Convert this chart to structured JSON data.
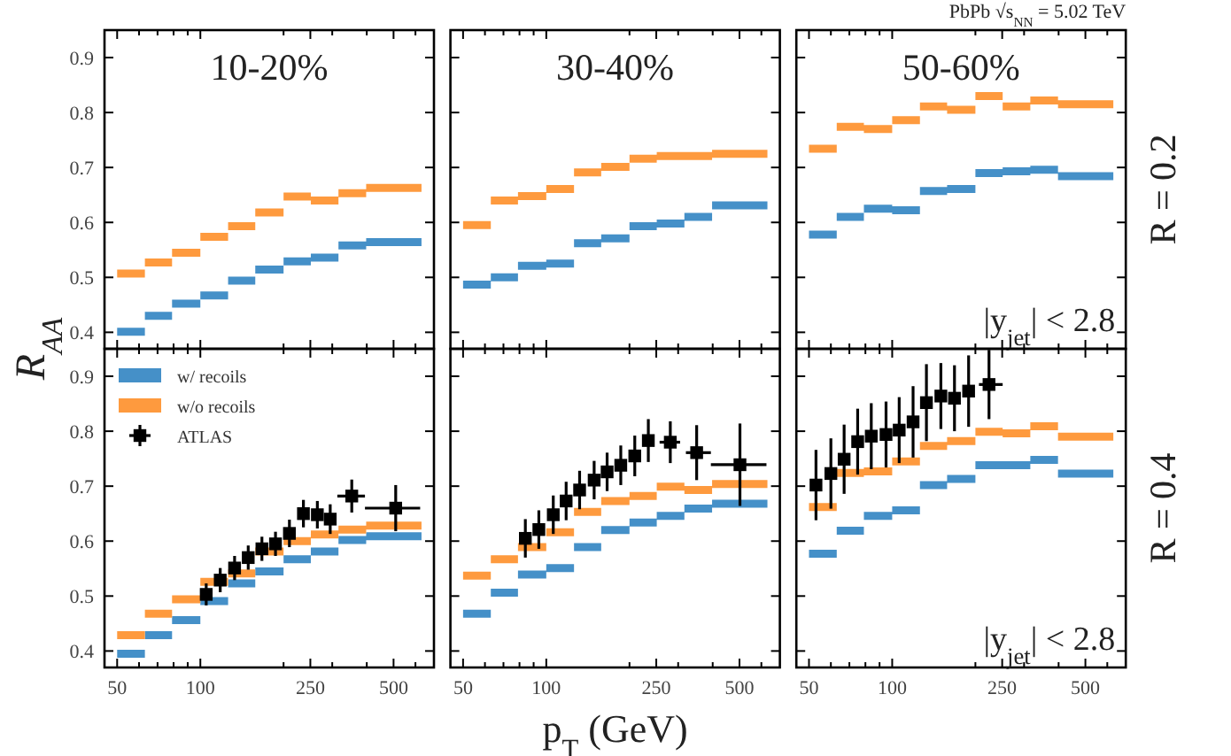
{
  "chart_data": [
    {
      "type": "step",
      "title": "10-20%",
      "log": "x",
      "xlim": [
        45,
        700
      ],
      "ylim": [
        0.37,
        0.95
      ],
      "tick_labels": "y",
      "xticks": [
        50,
        {
          "value": 60,
          "label": null
        },
        {
          "value": 70,
          "label": null
        },
        {
          "value": 80,
          "label": null
        },
        {
          "value": 90,
          "label": null
        },
        100,
        {
          "value": 200,
          "label": null
        },
        250,
        {
          "value": 300,
          "label": null
        },
        {
          "value": 400,
          "label": null
        },
        500,
        {
          "value": 600,
          "label": null
        }
      ],
      "yticks": [
        0.4,
        0.5,
        0.6,
        0.7,
        0.8,
        0.9
      ],
      "series": [
        {
          "color": "#fe9a3e",
          "x": [
            50,
            63,
            79,
            100,
            126,
            158,
            200,
            251,
            316,
            398,
            631
          ],
          "values": [
            0.507,
            0.527,
            0.545,
            0.574,
            0.593,
            0.618,
            0.647,
            0.64,
            0.653,
            0.663,
            0.663
          ]
        },
        {
          "color": "#4590c8",
          "x": [
            50,
            63,
            79,
            100,
            126,
            158,
            200,
            251,
            316,
            398,
            631
          ],
          "values": [
            0.401,
            0.43,
            0.452,
            0.467,
            0.494,
            0.514,
            0.529,
            0.536,
            0.558,
            0.564,
            0.564
          ]
        }
      ]
    },
    {
      "type": "step",
      "title": "30-40%",
      "log": "x",
      "xlim": [
        45,
        700
      ],
      "ylim": [
        0.37,
        0.95
      ],
      "tick_labels": false,
      "xticks": [
        50,
        {
          "value": 60,
          "label": null
        },
        {
          "value": 70,
          "label": null
        },
        {
          "value": 80,
          "label": null
        },
        {
          "value": 90,
          "label": null
        },
        100,
        {
          "value": 200,
          "label": null
        },
        250,
        {
          "value": 300,
          "label": null
        },
        {
          "value": 400,
          "label": null
        },
        500,
        {
          "value": 600,
          "label": null
        }
      ],
      "yticks": [
        0.4,
        0.5,
        0.6,
        0.7,
        0.8,
        0.9
      ],
      "series": [
        {
          "color": "#fe9a3e",
          "x": [
            50,
            63,
            79,
            100,
            126,
            158,
            200,
            251,
            316,
            398,
            631
          ],
          "values": [
            0.595,
            0.64,
            0.648,
            0.661,
            0.691,
            0.701,
            0.716,
            0.721,
            0.721,
            0.725,
            0.725
          ]
        },
        {
          "color": "#4590c8",
          "x": [
            50,
            63,
            79,
            100,
            126,
            158,
            200,
            251,
            316,
            398,
            631
          ],
          "values": [
            0.487,
            0.5,
            0.521,
            0.525,
            0.562,
            0.571,
            0.593,
            0.598,
            0.61,
            0.631,
            0.631
          ]
        }
      ]
    },
    {
      "type": "step",
      "title": "50-60%",
      "subtitle": "PbPb √s$_{NN}$ = 5.02 TeV",
      "annotations": [
        "|y$_{jet}$| < 2.8",
        "R = 0.2"
      ],
      "log": "x",
      "xlim": [
        45,
        700
      ],
      "ylim": [
        0.37,
        0.95
      ],
      "tick_labels": false,
      "xticks": [
        50,
        {
          "value": 60,
          "label": null
        },
        {
          "value": 70,
          "label": null
        },
        {
          "value": 80,
          "label": null
        },
        {
          "value": 90,
          "label": null
        },
        100,
        {
          "value": 200,
          "label": null
        },
        250,
        {
          "value": 300,
          "label": null
        },
        {
          "value": 400,
          "label": null
        },
        500,
        {
          "value": 600,
          "label": null
        }
      ],
      "yticks": [
        0.4,
        0.5,
        0.6,
        0.7,
        0.8,
        0.9
      ],
      "series": [
        {
          "color": "#fe9a3e",
          "x": [
            50,
            63,
            79,
            100,
            126,
            158,
            200,
            251,
            316,
            398,
            631
          ],
          "values": [
            0.734,
            0.774,
            0.77,
            0.786,
            0.811,
            0.805,
            0.83,
            0.811,
            0.822,
            0.815,
            0.815
          ]
        },
        {
          "color": "#4590c8",
          "x": [
            50,
            63,
            79,
            100,
            126,
            158,
            200,
            251,
            316,
            398,
            631
          ],
          "values": [
            0.578,
            0.61,
            0.625,
            0.622,
            0.657,
            0.661,
            0.69,
            0.693,
            0.696,
            0.684,
            0.684
          ]
        }
      ]
    },
    {
      "type": "step",
      "ylabel": "R$_{AA}$",
      "legend": "top left",
      "log": "x",
      "xlim": [
        45,
        700
      ],
      "ylim": [
        0.37,
        0.95
      ],
      "xticks": [
        50,
        {
          "value": 60,
          "label": null
        },
        {
          "value": 70,
          "label": null
        },
        {
          "value": 80,
          "label": null
        },
        {
          "value": 90,
          "label": null
        },
        100,
        {
          "value": 200,
          "label": null
        },
        250,
        {
          "value": 300,
          "label": null
        },
        {
          "value": 400,
          "label": null
        },
        500,
        {
          "value": 600,
          "label": null
        }
      ],
      "yticks": [
        0.4,
        0.5,
        0.6,
        0.7,
        0.8,
        0.9
      ],
      "series": [
        {
          "name": "w/ recoils",
          "color": "#4590c8",
          "x": [
            50,
            63,
            79,
            100,
            126,
            158,
            200,
            251,
            316,
            398,
            631
          ],
          "values": [
            0.395,
            0.429,
            0.456,
            0.491,
            0.523,
            0.545,
            0.567,
            0.581,
            0.602,
            0.609,
            0.609
          ]
        },
        {
          "name": "w/o recoils",
          "color": "#fe9a3e",
          "x": [
            50,
            63,
            79,
            100,
            126,
            158,
            200,
            251,
            316,
            398,
            631
          ],
          "values": [
            0.429,
            0.468,
            0.494,
            0.526,
            0.541,
            0.581,
            0.6,
            0.612,
            0.621,
            0.628,
            0.628
          ]
        },
        {
          "name": "ATLAS",
          "type": "scatter",
          "marker": "square",
          "color": "#000000",
          "x": [
            105,
            118,
            133,
            149,
            167,
            187,
            210,
            236,
            265,
            295,
            353,
            509
          ],
          "values": [
            0.503,
            0.529,
            0.551,
            0.57,
            0.586,
            0.595,
            0.614,
            0.65,
            0.648,
            0.64,
            0.682,
            0.66
          ],
          "errors": [
            0.02,
            0.022,
            0.022,
            0.022,
            0.022,
            0.022,
            0.025,
            0.025,
            0.025,
            0.027,
            0.03,
            0.042
          ],
          "xerrors": [
            null,
            null,
            null,
            null,
            null,
            null,
            null,
            null,
            null,
            null,
            [
              313,
              394
            ],
            [
              394,
              624
            ]
          ]
        }
      ]
    },
    {
      "type": "step",
      "xlabel": "p$_{T}$ (GeV)",
      "log": "x",
      "xlim": [
        45,
        700
      ],
      "ylim": [
        0.37,
        0.95
      ],
      "tick_labels": "x",
      "xticks": [
        50,
        {
          "value": 60,
          "label": null
        },
        {
          "value": 70,
          "label": null
        },
        {
          "value": 80,
          "label": null
        },
        {
          "value": 90,
          "label": null
        },
        100,
        {
          "value": 200,
          "label": null
        },
        250,
        {
          "value": 300,
          "label": null
        },
        {
          "value": 400,
          "label": null
        },
        500,
        {
          "value": 600,
          "label": null
        }
      ],
      "yticks": [
        0.4,
        0.5,
        0.6,
        0.7,
        0.8,
        0.9
      ],
      "series": [
        {
          "color": "#fe9a3e",
          "x": [
            50,
            63,
            79,
            100,
            126,
            158,
            200,
            251,
            316,
            398,
            631
          ],
          "values": [
            0.537,
            0.567,
            0.589,
            0.616,
            0.653,
            0.673,
            0.682,
            0.699,
            0.693,
            0.704,
            0.704
          ]
        },
        {
          "color": "#4590c8",
          "x": [
            50,
            63,
            79,
            100,
            126,
            158,
            200,
            251,
            316,
            398,
            631
          ],
          "values": [
            0.468,
            0.506,
            0.539,
            0.551,
            0.589,
            0.62,
            0.634,
            0.646,
            0.659,
            0.668,
            0.668
          ]
        },
        {
          "type": "scatter",
          "marker": "square",
          "color": "#000000",
          "x": [
            84,
            94,
            106,
            118,
            132,
            149,
            166,
            186,
            209,
            234,
            281,
            350,
            502
          ],
          "values": [
            0.605,
            0.621,
            0.648,
            0.673,
            0.693,
            0.711,
            0.726,
            0.738,
            0.755,
            0.783,
            0.78,
            0.761,
            0.739
          ],
          "errors": [
            0.035,
            0.035,
            0.035,
            0.035,
            0.035,
            0.035,
            0.035,
            0.036,
            0.037,
            0.039,
            0.038,
            0.05,
            0.075
          ],
          "xerrors": [
            null,
            null,
            null,
            null,
            null,
            null,
            null,
            null,
            null,
            null,
            [
              257,
              305
            ],
            [
              320,
              394
            ],
            [
              394,
              626
            ]
          ]
        }
      ]
    },
    {
      "type": "step",
      "annotations": [
        "|y$_{jet}$| < 2.8",
        "R = 0.4"
      ],
      "log": "x",
      "xlim": [
        45,
        700
      ],
      "ylim": [
        0.37,
        0.95
      ],
      "tick_labels": "x",
      "xticks": [
        50,
        {
          "value": 60,
          "label": null
        },
        {
          "value": 70,
          "label": null
        },
        {
          "value": 80,
          "label": null
        },
        {
          "value": 90,
          "label": null
        },
        100,
        {
          "value": 200,
          "label": null
        },
        250,
        {
          "value": 300,
          "label": null
        },
        {
          "value": 400,
          "label": null
        },
        500,
        {
          "value": 600,
          "label": null
        }
      ],
      "yticks": [
        0.4,
        0.5,
        0.6,
        0.7,
        0.8,
        0.9
      ],
      "series": [
        {
          "color": "#fe9a3e",
          "x": [
            50,
            63,
            79,
            100,
            126,
            158,
            200,
            251,
            316,
            398,
            631
          ],
          "values": [
            0.662,
            0.724,
            0.727,
            0.745,
            0.773,
            0.782,
            0.799,
            0.796,
            0.809,
            0.79,
            0.79
          ]
        },
        {
          "color": "#4590c8",
          "x": [
            50,
            63,
            79,
            100,
            126,
            158,
            200,
            251,
            316,
            398,
            631
          ],
          "values": [
            0.577,
            0.619,
            0.646,
            0.656,
            0.702,
            0.713,
            0.738,
            0.738,
            0.748,
            0.723,
            0.723
          ]
        },
        {
          "type": "scatter",
          "marker": "square",
          "color": "#000000",
          "x": [
            53,
            60,
            67,
            75,
            84,
            95,
            106,
            119,
            133,
            150,
            168,
            189,
            224
          ],
          "values": [
            0.702,
            0.723,
            0.749,
            0.781,
            0.791,
            0.794,
            0.802,
            0.817,
            0.852,
            0.864,
            0.86,
            0.873,
            0.885
          ],
          "errors": [
            0.064,
            0.064,
            0.063,
            0.06,
            0.06,
            0.06,
            0.06,
            0.065,
            0.07,
            0.06,
            0.06,
            0.065,
            0.063
          ],
          "xerrors": [
            null,
            null,
            null,
            null,
            null,
            null,
            null,
            null,
            null,
            null,
            null,
            null,
            [
              206,
              251
            ]
          ]
        }
      ]
    }
  ]
}
